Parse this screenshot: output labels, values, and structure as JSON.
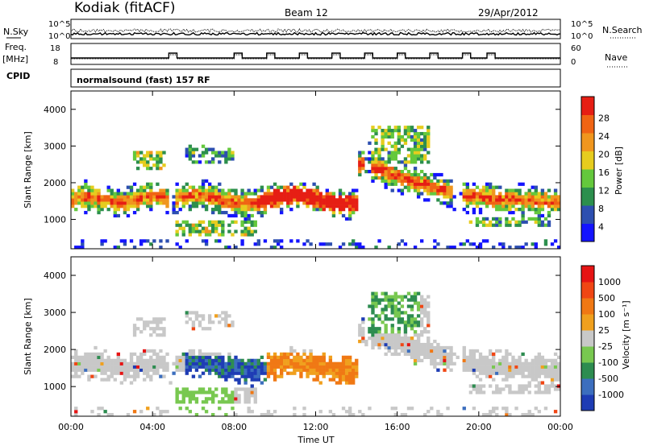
{
  "header": {
    "station": "Kodiak (fitACF)",
    "beam": "Beam 12",
    "date": "29/Apr/2012",
    "cpid_label": "CPID",
    "cpid_value": "normalsound (fast) 157 RF"
  },
  "labels": {
    "nsky": "N.Sky",
    "freq": "Freq.",
    "freq_unit": "[MHz]",
    "nsearch": "N.Search",
    "nave": "Nave",
    "nsky_ticks": [
      "10^5",
      "10^0"
    ],
    "nsearch_ticks": [
      "10^5",
      "10^0"
    ],
    "freq_ticks": [
      "18",
      "8"
    ],
    "nave_ticks": [
      "60",
      "0"
    ]
  },
  "chart_data": [
    {
      "type": "heatmap",
      "panel": "power",
      "ylabel": "Slant Range [km]",
      "ylim": [
        200,
        4500
      ],
      "yticks": [
        "1000",
        "2000",
        "3000",
        "4000"
      ],
      "xticks": [
        "00:00",
        "04:00",
        "08:00",
        "12:00",
        "16:00",
        "20:00",
        "00:00"
      ],
      "colorbar": {
        "label": "Power [dB]",
        "ticks": [
          "4",
          "8",
          "12",
          "16",
          "20",
          "24",
          "28"
        ],
        "colors": [
          "#1414ff",
          "#2d4fb0",
          "#2c8f4d",
          "#64c83c",
          "#e6cc1e",
          "#f0961e",
          "#f06414",
          "#e61e14"
        ]
      }
    },
    {
      "type": "heatmap",
      "panel": "velocity",
      "ylabel": "Slant Range [km]",
      "ylim": [
        200,
        4500
      ],
      "yticks": [
        "1000",
        "2000",
        "3000",
        "4000"
      ],
      "xticks": [
        "00:00",
        "04:00",
        "08:00",
        "12:00",
        "16:00",
        "20:00",
        "00:00"
      ],
      "xlabel": "Time UT",
      "colorbar": {
        "label": "Velocity [m s⁻¹]",
        "ticks": [
          "1000",
          "500",
          "100",
          "25",
          "-25",
          "-100",
          "-500",
          "-1000"
        ],
        "colors": [
          "#1e3cb4",
          "#3c6ebe",
          "#2d8c50",
          "#78c850",
          "#c8c8c8",
          "#f0a01e",
          "#f07814",
          "#f04614",
          "#e61414"
        ]
      }
    }
  ]
}
